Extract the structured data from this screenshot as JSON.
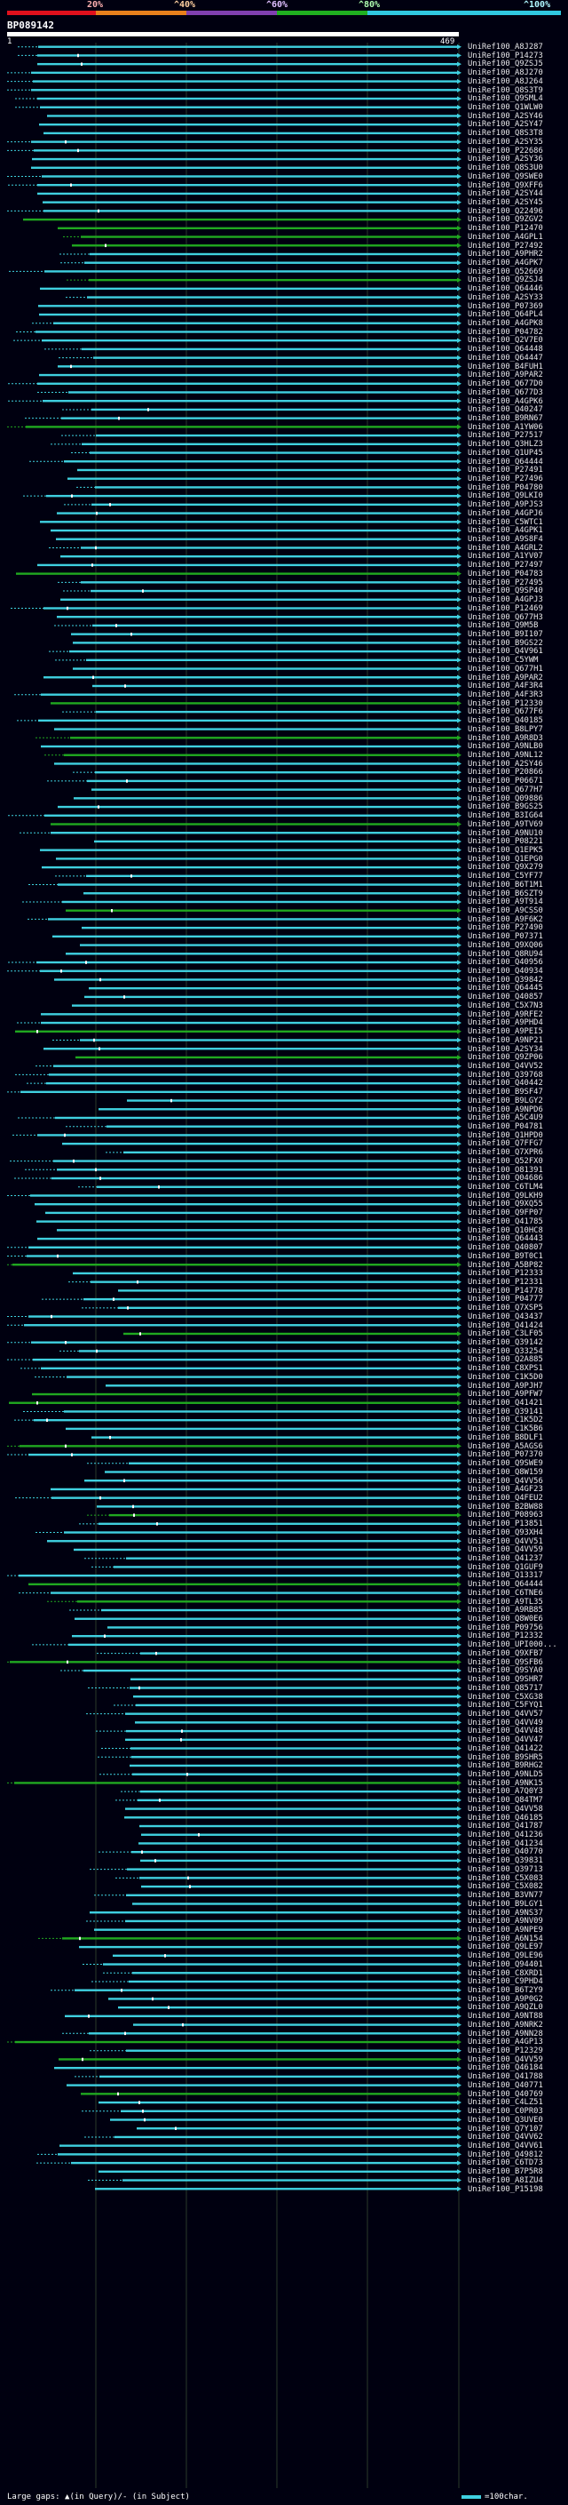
{
  "scale": {
    "labels": [
      "20%",
      "^40%",
      "^60%",
      "^80%",
      "^100%"
    ],
    "colors": [
      "#e0101c",
      "#e8801c",
      "#8040b0",
      "#20b020",
      "#30c8e0"
    ]
  },
  "query": {
    "id": "BP089142",
    "start": "1",
    "end": "469"
  },
  "colors": {
    "cyan": "#3fd0e0",
    "green": "#20a820",
    "query": "#ffffff"
  },
  "rows": [
    "UniRef100_A8J287",
    "UniRef100_P14273",
    "UniRef100_Q9ZSJ5",
    "UniRef100_A8J270",
    "UniRef100_A8J264",
    "UniRef100_Q8S3T9",
    "UniRef100_Q9SML4",
    "UniRef100_Q1WLW0",
    "UniRef100_A2SY46",
    "UniRef100_A2SY47",
    "UniRef100_Q8S3T8",
    "UniRef100_A2SY35",
    "UniRef100_P22686",
    "UniRef100_A2SY36",
    "UniRef100_Q8S3U0",
    "UniRef100_Q9SWE0",
    "UniRef100_Q9XFF6",
    "UniRef100_A2SY44",
    "UniRef100_A2SY45",
    "UniRef100_Q22496",
    "UniRef100_Q9ZGV2",
    "UniRef100_P12470",
    "UniRef100_A4GPL1",
    "UniRef100_P27492",
    "UniRef100_A9PHR2",
    "UniRef100_A4GPK7",
    "UniRef100_Q52669",
    "UniRef100_Q9ZSJ4",
    "UniRef100_Q64446",
    "UniRef100_A2SY33",
    "UniRef100_P07369",
    "UniRef100_Q64PL4",
    "UniRef100_A4GPK8",
    "UniRef100_P04782",
    "UniRef100_Q2V7E0",
    "UniRef100_Q64448",
    "UniRef100_Q64447",
    "UniRef100_B4FUH1",
    "UniRef100_A9PAR2",
    "UniRef100_Q677D0",
    "UniRef100_Q677D3",
    "UniRef100_A4GPK6",
    "UniRef100_Q40247",
    "UniRef100_B9RN67",
    "UniRef100_A1YW06",
    "UniRef100_P27517",
    "UniRef100_Q3HLZ3",
    "UniRef100_Q1UP45",
    "UniRef100_Q64444",
    "UniRef100_P27491",
    "UniRef100_P27496",
    "UniRef100_P04780",
    "UniRef100_Q9LKI0",
    "UniRef100_A9PJS3",
    "UniRef100_A4GPJ6",
    "UniRef100_C5WTC1",
    "UniRef100_A4GPK1",
    "UniRef100_A9S8F4",
    "UniRef100_A4GRL2",
    "UniRef100_A1YV07",
    "UniRef100_P27497",
    "UniRef100_P04783",
    "UniRef100_P27495",
    "UniRef100_Q9SP40",
    "UniRef100_A4GPJ3",
    "UniRef100_P12469",
    "UniRef100_Q677H3",
    "UniRef100_Q9M5B",
    "UniRef100_B9I107",
    "UniRef100_B9GS22",
    "UniRef100_Q4V961",
    "UniRef100_C5YWM",
    "UniRef100_Q677H1",
    "UniRef100_A9PAR2",
    "UniRef100_A4F3R4",
    "UniRef100_A4F3R3",
    "UniRef100_P12330",
    "UniRef100_Q677F6",
    "UniRef100_Q40185",
    "UniRef100_B8LPY7",
    "UniRef100_A9R8D3",
    "UniRef100_A9NLB0",
    "UniRef100_A9NL12",
    "UniRef100_A2SY46",
    "UniRef100_P20866",
    "UniRef100_P06671",
    "UniRef100_Q677H7",
    "UniRef100_Q09886",
    "UniRef100_B9GS25",
    "UniRef100_B3IG64",
    "UniRef100_A9TV69",
    "UniRef100_A9NU10",
    "UniRef100_P08221",
    "UniRef100_Q1EPK5",
    "UniRef100_Q1EPG0",
    "UniRef100_Q9X279",
    "UniRef100_C5YF77",
    "UniRef100_B6T1M1",
    "UniRef100_B6SZT9",
    "UniRef100_A9T914",
    "UniRef100_A9CSS0",
    "UniRef100_A9F6K2",
    "UniRef100_P27490",
    "UniRef100_P07371",
    "UniRef100_Q9XQ06",
    "UniRef100_Q8RU94",
    "UniRef100_Q40956",
    "UniRef100_Q40934",
    "UniRef100_Q39842",
    "UniRef100_Q64445",
    "UniRef100_Q40857",
    "UniRef100_C5X7N3",
    "UniRef100_A9RFE2",
    "UniRef100_A9PHD4",
    "UniRef100_A9PEI5",
    "UniRef100_A9NP21",
    "UniRef100_A2SY34",
    "UniRef100_Q9ZP06",
    "UniRef100_Q4VV52",
    "UniRef100_Q39768",
    "UniRef100_Q40442",
    "UniRef100_B9SF47",
    "UniRef100_B9LGY2",
    "UniRef100_A9NPD6",
    "UniRef100_A5C4U9",
    "UniRef100_P04781",
    "UniRef100_Q1HPD0",
    "UniRef100_Q7FFG7",
    "UniRef100_Q7XPR6",
    "UniRef100_Q52FX0",
    "UniRef100_O81391",
    "UniRef100_Q04686",
    "UniRef100_C6TLM4",
    "UniRef100_Q9LKH9",
    "UniRef100_Q9XQ55",
    "UniRef100_Q9FP07",
    "UniRef100_Q41785",
    "UniRef100_Q10HC8",
    "UniRef100_Q64443",
    "UniRef100_Q40807",
    "UniRef100_B9T0C1",
    "UniRef100_A5BP82",
    "UniRef100_P12333",
    "UniRef100_P12331",
    "UniRef100_P14778",
    "UniRef100_P04777",
    "UniRef100_Q7XSP5",
    "UniRef100_Q43437",
    "UniRef100_Q41424",
    "UniRef100_C3LF05",
    "UniRef100_Q39142",
    "UniRef100_Q33254",
    "UniRef100_Q2A885",
    "UniRef100_C8XPS1",
    "UniRef100_C1K5D0",
    "UniRef100_A9PJH7",
    "UniRef100_A9PFW7",
    "UniRef100_Q41421",
    "UniRef100_Q39141",
    "UniRef100_C1K5D2",
    "UniRef100_C1K5B6",
    "UniRef100_B8DLF1",
    "UniRef100_A5AGS6",
    "UniRef100_P07370",
    "UniRef100_Q9SWE9",
    "UniRef100_Q8W159",
    "UniRef100_Q4VV56",
    "UniRef100_A4GF23",
    "UniRef100_Q4FEU2",
    "UniRef100_B2BW88",
    "UniRef100_P08963",
    "UniRef100_P13851",
    "UniRef100_Q93XH4",
    "UniRef100_Q4VV51",
    "UniRef100_Q4VV59",
    "UniRef100_Q41237",
    "UniRef100_Q1GUF9",
    "UniRef100_Q13317",
    "UniRef100_Q64444",
    "UniRef100_C6TNE6",
    "UniRef100_A9TL35",
    "UniRef100_A9RB85",
    "UniRef100_Q8W0E6",
    "UniRef100_P09756",
    "UniRef100_P12332",
    "UniRef100_UPI000...",
    "UniRef100_Q9XFB7",
    "UniRef100_Q9SFB6",
    "UniRef100_Q9SYA0",
    "UniRef100_Q9SHR7",
    "UniRef100_Q85717",
    "UniRef100_C5XG38",
    "UniRef100_C5FYQ1",
    "UniRef100_Q4VV57",
    "UniRef100_Q4VV49",
    "UniRef100_Q4VV48",
    "UniRef100_Q4VV47",
    "UniRef100_Q41422",
    "UniRef100_B9SHR5",
    "UniRef100_B9RHG2",
    "UniRef100_A9NLD5",
    "UniRef100_A9NK15",
    "UniRef100_A7Q0Y3",
    "UniRef100_Q84TM7",
    "UniRef100_Q4VV58",
    "UniRef100_Q46185",
    "UniRef100_Q41787",
    "UniRef100_Q41236",
    "UniRef100_Q41234",
    "UniRef100_Q40770",
    "UniRef100_Q39831",
    "UniRef100_Q39713",
    "UniRef100_C5X083",
    "UniRef100_C5X082",
    "UniRef100_B3VN77",
    "UniRef100_B9LGY1",
    "UniRef100_A9NS37",
    "UniRef100_A9NV09",
    "UniRef100_A9NPE9",
    "UniRef100_A6N154",
    "UniRef100_Q9LE97",
    "UniRef100_Q9LE96",
    "UniRef100_Q94401",
    "UniRef100_C8XRD1",
    "UniRef100_C9PHD4",
    "UniRef100_B6T2Y9",
    "UniRef100_A9P0G2",
    "UniRef100_A9QZL0",
    "UniRef100_A9NT88",
    "UniRef100_A9NRK2",
    "UniRef100_A9NN28",
    "UniRef100_A4GP13",
    "UniRef100_P12329",
    "UniRef100_Q4VV59",
    "UniRef100_Q46184",
    "UniRef100_Q41788",
    "UniRef100_Q40771",
    "UniRef100_Q40769",
    "UniRef100_C4LZ51",
    "UniRef100_C0PR03",
    "UniRef100_Q3UVE0",
    "UniRef100_Q7Y107",
    "UniRef100_Q4VV62",
    "UniRef100_Q4VV61",
    "UniRef100_Q49812",
    "UniRef100_C6TD73",
    "UniRef100_B7P5R8",
    "UniRef100_A8IZU4",
    "UniRef100_P15198"
  ],
  "footer": {
    "text": "Large gaps: ▲(in Query)/- (in Subject)",
    "legend": "=100char."
  }
}
